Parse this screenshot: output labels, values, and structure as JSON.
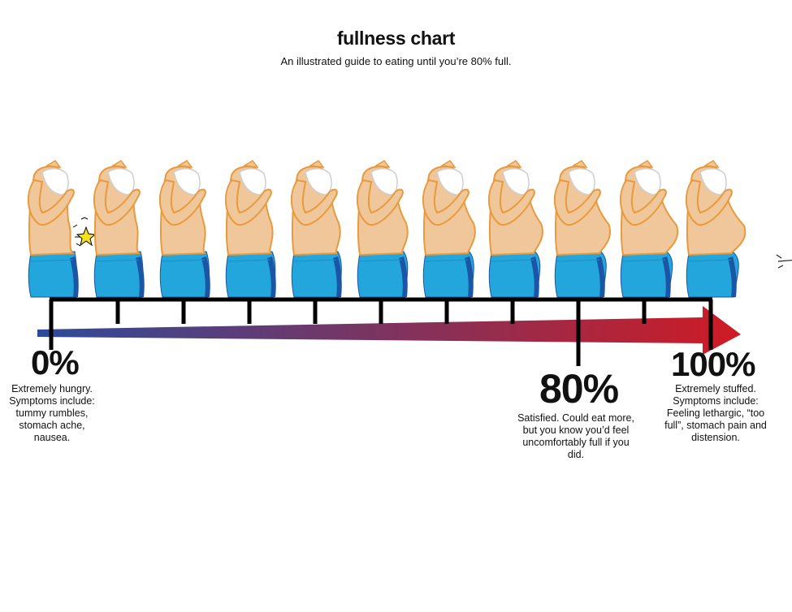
{
  "title": "fullness chart",
  "subtitle": "An illustrated guide to eating until you’re 80% full.",
  "colors": {
    "skin": "#efc79b",
    "skin_outline": "#e89a3c",
    "jeans": "#23a6dc",
    "jeans_shadow": "#1b55a6",
    "shirt": "#ffffff",
    "scale_line": "#000000",
    "arrow_start": "#2e4b9a",
    "arrow_end": "#cf1b24",
    "symptom_star": "#f6e21c"
  },
  "figures": [
    {
      "level": 0.0,
      "symptom_icon": "rumble-star-icon"
    },
    {
      "level": 0.1
    },
    {
      "level": 0.2
    },
    {
      "level": 0.3
    },
    {
      "level": 0.4
    },
    {
      "level": 0.5
    },
    {
      "level": 0.6
    },
    {
      "level": 0.7
    },
    {
      "level": 0.8
    },
    {
      "level": 0.9
    },
    {
      "level": 1.0,
      "symptom_icon": "popped-button-icon"
    }
  ],
  "markers": {
    "zero": {
      "value": 0,
      "label": "0%",
      "description": "Extremely hungry. Symptoms include: tummy rumbles, stomach ache, nausea."
    },
    "eighty": {
      "value": 80,
      "label": "80%",
      "description": "Satisfied. Could eat more, but you know you’d feel uncomfortably full if you did."
    },
    "hundred": {
      "value": 100,
      "label": "100%",
      "description": "Extremely stuffed. Symptoms include: Feeling lethargic, “too full”, stomach pain and distension."
    }
  }
}
